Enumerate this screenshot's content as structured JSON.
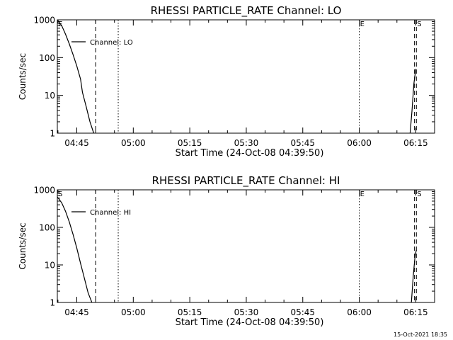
{
  "chart_data": [
    {
      "type": "line",
      "title": "RHESSI PARTICLE_RATE Channel: LO",
      "xlabel": "Start Time (24-Oct-08 04:39:50)",
      "ylabel": "Counts/sec",
      "y_scale": "log",
      "ylim": [
        1,
        1000
      ],
      "y_tick_labels": [
        "1",
        "10",
        "100",
        "1000"
      ],
      "xlim": [
        "04:39:50",
        "06:20:00"
      ],
      "x_tick_labels": [
        "04:45",
        "05:00",
        "05:15",
        "05:30",
        "05:45",
        "06:00",
        "06:15"
      ],
      "grid": false,
      "legend": {
        "label": "Channel: LO",
        "position": "top-left"
      },
      "series": [
        {
          "name": "Channel: LO",
          "segments": [
            [
              [
                "04:39:50",
                1000
              ],
              [
                "04:41:00",
                700
              ],
              [
                "04:42:00",
                420
              ],
              [
                "04:43:00",
                230
              ],
              [
                "04:44:00",
                120
              ],
              [
                "04:45:00",
                60
              ],
              [
                "04:46:00",
                27
              ],
              [
                "04:46:30",
                12
              ],
              [
                "04:47:30",
                5
              ],
              [
                "04:48:30",
                2
              ],
              [
                "04:49:30",
                1
              ]
            ],
            [
              [
                "06:13:30",
                1
              ],
              [
                "06:14:00",
                4
              ],
              [
                "06:14:30",
                20
              ],
              [
                "06:15:00",
                50
              ]
            ]
          ]
        }
      ],
      "vertical_markers": [
        {
          "time": "04:39:50",
          "style": "solid",
          "label": "E"
        },
        {
          "time": "04:50:00",
          "style": "dashed",
          "label": ""
        },
        {
          "time": "04:56:00",
          "style": "dotted",
          "label": ""
        },
        {
          "time": "06:00:00",
          "style": "dotted",
          "label": "E"
        },
        {
          "time": "06:14:40",
          "style": "dashed",
          "label": ""
        },
        {
          "time": "06:15:10",
          "style": "dashed",
          "label": "S"
        }
      ]
    },
    {
      "type": "line",
      "title": "RHESSI PARTICLE_RATE Channel: HI",
      "xlabel": "Start Time (24-Oct-08 04:39:50)",
      "ylabel": "Counts/sec",
      "y_scale": "log",
      "ylim": [
        1,
        1000
      ],
      "y_tick_labels": [
        "1",
        "10",
        "100",
        "1000"
      ],
      "xlim": [
        "04:39:50",
        "06:20:00"
      ],
      "x_tick_labels": [
        "04:45",
        "05:00",
        "05:15",
        "05:30",
        "05:45",
        "06:00",
        "06:15"
      ],
      "grid": false,
      "legend": {
        "label": "Channel: HI",
        "position": "top-left"
      },
      "series": [
        {
          "name": "Channel: HI",
          "segments": [
            [
              [
                "04:39:50",
                650
              ],
              [
                "04:41:00",
                450
              ],
              [
                "04:42:00",
                270
              ],
              [
                "04:43:00",
                140
              ],
              [
                "04:44:00",
                65
              ],
              [
                "04:45:00",
                28
              ],
              [
                "04:46:00",
                11
              ],
              [
                "04:47:00",
                4.5
              ],
              [
                "04:48:00",
                1.8
              ],
              [
                "04:49:00",
                1
              ]
            ],
            [
              [
                "06:13:50",
                1
              ],
              [
                "06:14:20",
                5
              ],
              [
                "06:14:50",
                18
              ],
              [
                "06:15:10",
                25
              ]
            ]
          ]
        }
      ],
      "vertical_markers": [
        {
          "time": "04:39:50",
          "style": "solid",
          "label": "S"
        },
        {
          "time": "04:50:00",
          "style": "dashed",
          "label": ""
        },
        {
          "time": "04:56:00",
          "style": "dotted",
          "label": ""
        },
        {
          "time": "06:00:00",
          "style": "dotted",
          "label": "E"
        },
        {
          "time": "06:14:40",
          "style": "dashed",
          "label": ""
        },
        {
          "time": "06:15:10",
          "style": "dashed",
          "label": "S"
        }
      ]
    }
  ],
  "footer": {
    "timestamp": "15-Oct-2021 18:35"
  }
}
